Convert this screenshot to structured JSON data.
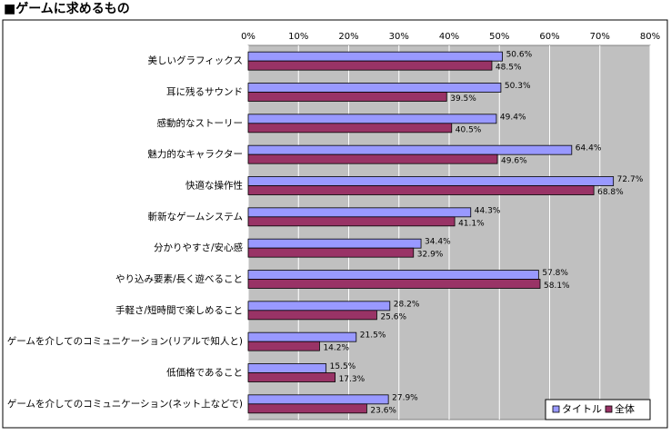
{
  "chart_data": {
    "type": "hbar",
    "title": "■ゲームに求めるもの",
    "categories": [
      "美しいグラフィックス",
      "耳に残るサウンド",
      "感動的なストーリー",
      "魅力的なキャラクター",
      "快適な操作性",
      "斬新なゲームシステム",
      "分かりやすさ/安心感",
      "やり込み要素/長く遊べること",
      "手軽さ/短時間で楽しめること",
      "ゲームを介してのコミュニケーション(リアルで知人と)",
      "低価格であること",
      "ゲームを介してのコミュニケーション(ネット上などで)"
    ],
    "series": [
      {
        "name": "タイトル",
        "color": "#9999ff",
        "values": [
          50.6,
          50.3,
          49.4,
          64.4,
          72.7,
          44.3,
          34.4,
          57.8,
          28.2,
          21.5,
          15.5,
          27.9
        ],
        "value_labels": [
          "50.6%",
          "50.3%",
          "49.4%",
          "64.4%",
          "72.7%",
          "44.3%",
          "34.4%",
          "57.8%",
          "28.2%",
          "21.5%",
          "15.5%",
          "27.9%"
        ]
      },
      {
        "name": "全体",
        "color": "#993366",
        "values": [
          48.5,
          39.5,
          40.5,
          49.6,
          68.8,
          41.1,
          32.9,
          58.1,
          25.6,
          14.2,
          17.3,
          23.6
        ],
        "value_labels": [
          "48.5%",
          "39.5%",
          "40.5%",
          "49.6%",
          "68.8%",
          "41.1%",
          "32.9%",
          "58.1%",
          "25.6%",
          "14.2%",
          "17.3%",
          "23.6%"
        ]
      }
    ],
    "xlim": [
      0,
      80
    ],
    "xticks": [
      {
        "value": 0,
        "label": "0%"
      },
      {
        "value": 10,
        "label": "10%"
      },
      {
        "value": 20,
        "label": "20%"
      },
      {
        "value": 30,
        "label": "30%"
      },
      {
        "value": 40,
        "label": "40%"
      },
      {
        "value": 50,
        "label": "50%"
      },
      {
        "value": 60,
        "label": "60%"
      },
      {
        "value": 70,
        "label": "70%"
      },
      {
        "value": 80,
        "label": "80%"
      }
    ],
    "grid": true,
    "legend": "bottom-right"
  }
}
